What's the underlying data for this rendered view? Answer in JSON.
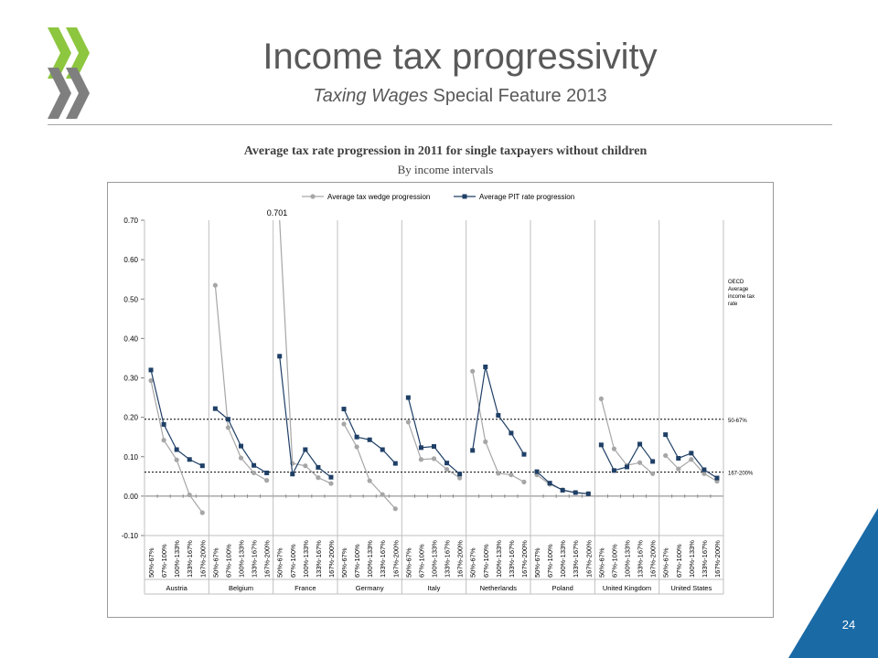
{
  "slide": {
    "title": "Income tax progressivity",
    "subtitle_italic": "Taxing Wages",
    "subtitle_rest": " Special Feature 2013",
    "page_number": "24",
    "colors": {
      "logo_green": "#8dc63f",
      "logo_grey": "#7f7f7f",
      "corner_blue": "#1a6aa6"
    }
  },
  "chart_data": {
    "type": "line",
    "title": "Average tax rate progression in 2011 for single taxpayers without children",
    "subtitle": "By income intervals",
    "yticks": [
      "0.70",
      "0.60",
      "0.50",
      "0.40",
      "0.30",
      "0.20",
      "0.10",
      "0.00",
      "-0.10"
    ],
    "ylim": [
      -0.1,
      0.7
    ],
    "intervals": [
      "50%-67%",
      "67%-100%",
      "100%-133%",
      "133%-167%",
      "167%-200%"
    ],
    "countries": [
      "Austria",
      "Belgium",
      "France",
      "Germany",
      "Italy",
      "Netherlands",
      "Poland",
      "United Kingdom",
      "United States"
    ],
    "legend_position": "top",
    "series": [
      {
        "name": "Average tax wedge progression",
        "color": "#a6a6a6",
        "marker": "circle",
        "values": [
          [
            0.293,
            0.142,
            0.092,
            0.003,
            -0.042
          ],
          [
            0.535,
            0.174,
            0.097,
            0.059,
            0.04
          ],
          [
            0.701,
            0.083,
            0.077,
            0.047,
            0.032
          ],
          [
            0.183,
            0.125,
            0.039,
            0.004,
            -0.032
          ],
          [
            0.188,
            0.093,
            0.095,
            0.068,
            0.046
          ],
          [
            0.317,
            0.138,
            0.058,
            0.054,
            0.036
          ],
          [
            0.054,
            0.03,
            0.016,
            0.009,
            0.006
          ],
          [
            0.247,
            0.12,
            0.078,
            0.085,
            0.057
          ],
          [
            0.103,
            0.069,
            0.093,
            0.057,
            0.038
          ]
        ]
      },
      {
        "name": "Average PIT rate progression",
        "color": "#1f3f66",
        "marker": "square",
        "values": [
          [
            0.32,
            0.182,
            0.118,
            0.093,
            0.077
          ],
          [
            0.222,
            0.195,
            0.127,
            0.078,
            0.059
          ],
          [
            0.355,
            0.056,
            0.118,
            0.073,
            0.048
          ],
          [
            0.221,
            0.15,
            0.143,
            0.118,
            0.083
          ],
          [
            0.25,
            0.123,
            0.126,
            0.084,
            0.056
          ],
          [
            0.116,
            0.328,
            0.205,
            0.16,
            0.106
          ],
          [
            0.062,
            0.033,
            0.015,
            0.009,
            0.006
          ],
          [
            0.13,
            0.065,
            0.074,
            0.132,
            0.088
          ],
          [
            0.156,
            0.096,
            0.109,
            0.067,
            0.046
          ]
        ]
      }
    ],
    "annotation_max": "0.701",
    "reference_lines": [
      {
        "label": "50-67%",
        "value": 0.195
      },
      {
        "label": "167-200%",
        "value": 0.061
      }
    ],
    "reference_title": [
      "OECD",
      "Average",
      "income tax",
      "rate"
    ]
  }
}
